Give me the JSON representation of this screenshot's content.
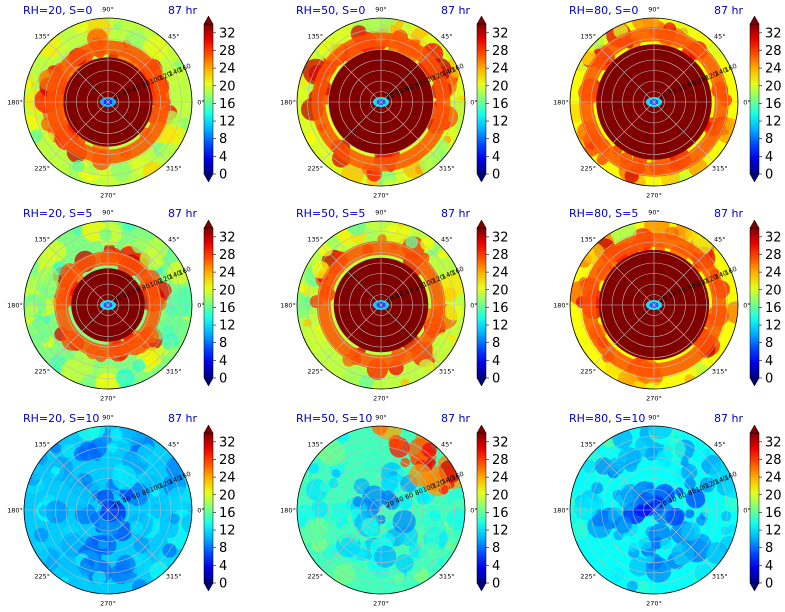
{
  "chart_data": {
    "type": "heatmap",
    "projection": "polar",
    "time_label": "87 hr",
    "angle_labels": [
      "0°",
      "45°",
      "90°",
      "135°",
      "180°",
      "225°",
      "270°",
      "315°"
    ],
    "radial_ticks": [
      20,
      40,
      60,
      80,
      100,
      120,
      140,
      160
    ],
    "colorbar": {
      "ticks": [
        0,
        4,
        8,
        12,
        16,
        20,
        24,
        28,
        32
      ],
      "range": [
        0,
        34
      ],
      "colormap": "jet",
      "extend": "both"
    },
    "panels": [
      {
        "title": "RH=20, S=0",
        "rh": 20,
        "shear": 0,
        "core_max_radius": 85,
        "outer_level": 19,
        "inner_level": 4
      },
      {
        "title": "RH=50, S=0",
        "rh": 50,
        "shear": 0,
        "core_max_radius": 100,
        "outer_level": 20,
        "inner_level": 6
      },
      {
        "title": "RH=80, S=0",
        "rh": 80,
        "shear": 0,
        "core_max_radius": 110,
        "outer_level": 21,
        "inner_level": 6
      },
      {
        "title": "RH=20, S=5",
        "rh": 20,
        "shear": 5,
        "core_max_radius": 70,
        "outer_level": 17,
        "inner_level": 6
      },
      {
        "title": "RH=50, S=5",
        "rh": 50,
        "shear": 5,
        "core_max_radius": 90,
        "outer_level": 19,
        "inner_level": 5
      },
      {
        "title": "RH=80, S=5",
        "rh": 80,
        "shear": 5,
        "core_max_radius": 105,
        "outer_level": 21,
        "inner_level": 6
      },
      {
        "title": "RH=20, S=10",
        "rh": 20,
        "shear": 10,
        "core_max_radius": 0,
        "outer_level": 11,
        "inner_level": 8
      },
      {
        "title": "RH=50, S=10",
        "rh": 50,
        "shear": 10,
        "core_max_radius": 0,
        "outer_level": 15,
        "inner_level": 10
      },
      {
        "title": "RH=80, S=10",
        "rh": 80,
        "shear": 10,
        "core_max_radius": 0,
        "outer_level": 13,
        "inner_level": 6
      }
    ]
  },
  "colors": {
    "title": "#0000cc",
    "grid": "#bbbbbb",
    "core": "#800000"
  }
}
